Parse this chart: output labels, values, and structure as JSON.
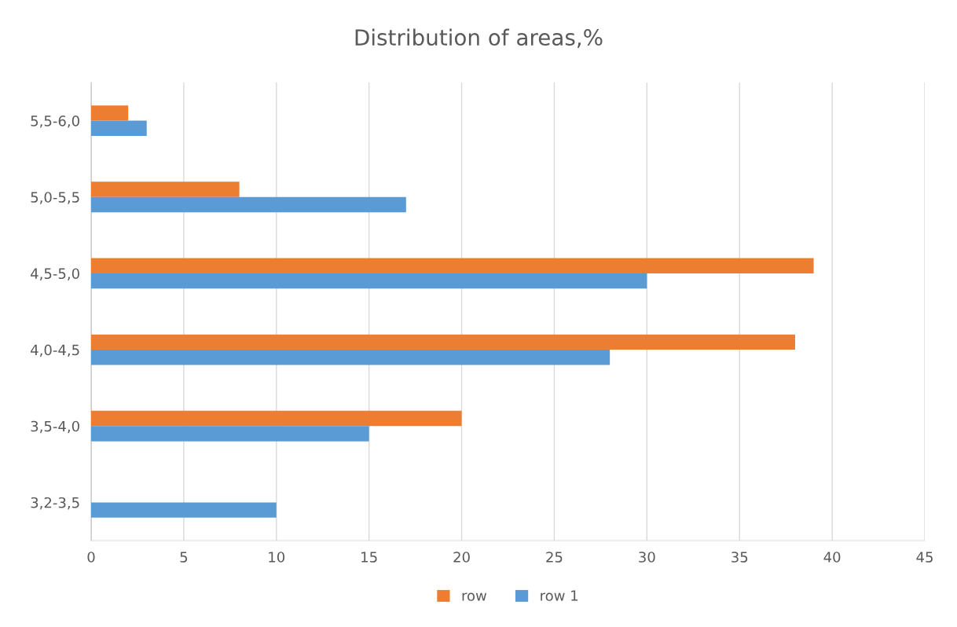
{
  "chart_data": {
    "type": "bar",
    "orientation": "horizontal",
    "title": "Distribution of areas,%",
    "categories": [
      "5,5-6,0",
      "5,0-5,5",
      "4,5-5,0",
      "4,0-4,5",
      "3,5-4,0",
      "3,2-3,5"
    ],
    "series": [
      {
        "name": "row",
        "color": "#ed7d31",
        "values": [
          2,
          8,
          39,
          38,
          20,
          null
        ]
      },
      {
        "name": "row 1",
        "color": "#5b9bd5",
        "values": [
          3,
          17,
          30,
          28,
          15,
          10
        ]
      }
    ],
    "xlim": [
      0,
      45
    ],
    "xticks": [
      0,
      5,
      10,
      15,
      20,
      25,
      30,
      35,
      40,
      45
    ],
    "grid": "x",
    "legend": "bottom"
  }
}
